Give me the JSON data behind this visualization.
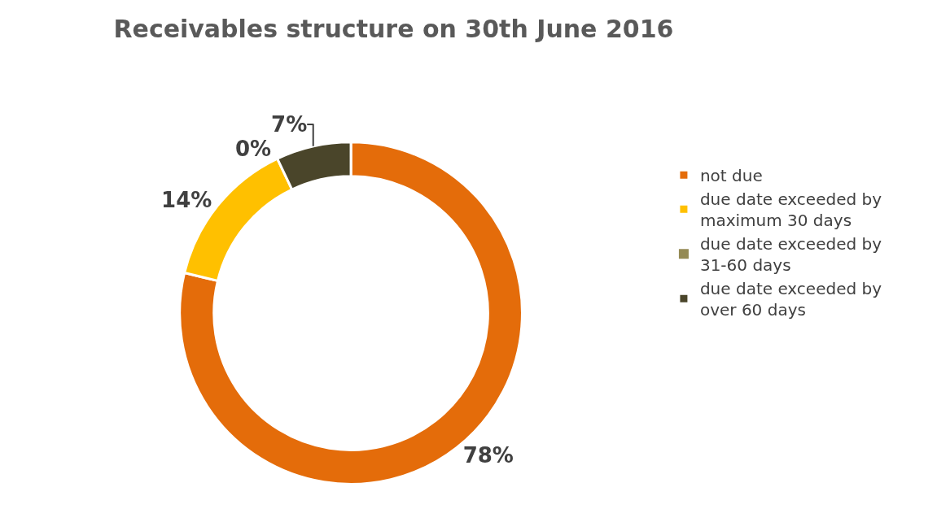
{
  "chart_data": {
    "type": "donut",
    "title": "Receivables structure on 30th June 2016",
    "categories": [
      "not due",
      "due date exceeded by maximum 30 days",
      "due date exceeded by 31-60 days",
      "due date exceeded by over 60 days"
    ],
    "values": [
      78,
      14,
      0,
      7
    ],
    "value_labels": [
      "78%",
      "14%",
      "0%",
      "7%"
    ],
    "colors": [
      "#e46c0a",
      "#ffc000",
      "#948a54",
      "#4a452a"
    ],
    "legend": "right"
  }
}
